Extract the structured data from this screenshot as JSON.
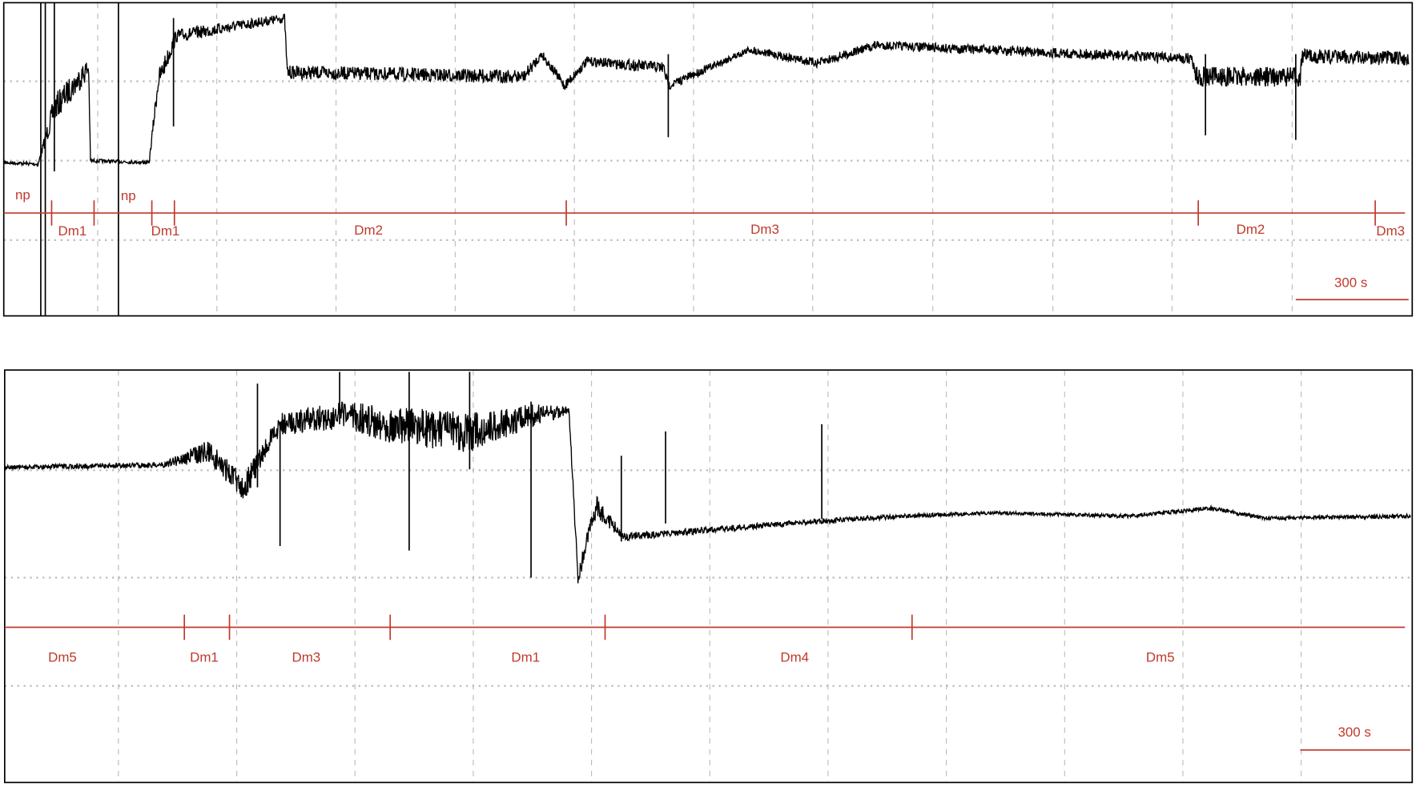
{
  "panels": [
    {
      "labels": [
        "np",
        "Dm1",
        "np",
        "Dm1",
        "Dm2",
        "Dm3",
        "Dm2",
        "Dm3"
      ],
      "scale_bar": "300 s"
    },
    {
      "labels": [
        "Dm5",
        "Dm1",
        "Dm3",
        "Dm1",
        "Dm4",
        "Dm5"
      ],
      "scale_bar": "300 s"
    }
  ]
}
